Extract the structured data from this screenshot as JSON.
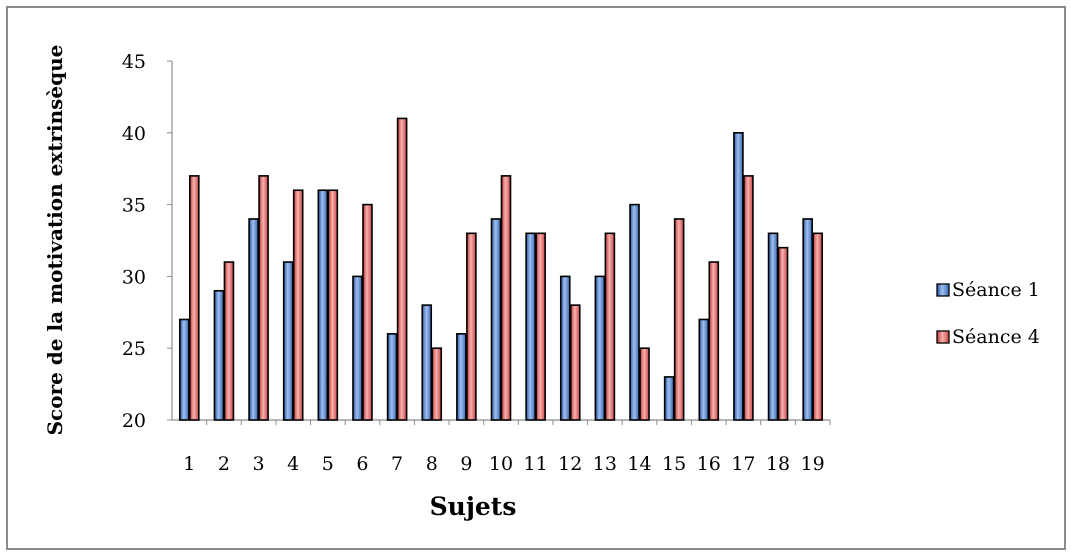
{
  "chart_data": {
    "type": "bar",
    "title": "",
    "xlabel": "Sujets",
    "ylabel": "Score de la motivation extrinsèque",
    "categories": [
      "1",
      "2",
      "3",
      "4",
      "5",
      "6",
      "7",
      "8",
      "9",
      "10",
      "11",
      "12",
      "13",
      "14",
      "15",
      "16",
      "17",
      "18",
      "19"
    ],
    "series": [
      {
        "name": "Séance 1",
        "color": "#4f81bd",
        "values": [
          27,
          29,
          34,
          31,
          36,
          30,
          26,
          28,
          26,
          34,
          33,
          30,
          30,
          35,
          23,
          27,
          40,
          33,
          34
        ]
      },
      {
        "name": "Séance 4",
        "color": "#e05c5c",
        "values": [
          37,
          31,
          37,
          36,
          36,
          35,
          41,
          25,
          33,
          37,
          33,
          28,
          33,
          25,
          34,
          31,
          37,
          32,
          33
        ]
      }
    ],
    "ylim": [
      20,
      45
    ],
    "yticks": [
      20,
      25,
      30,
      35,
      40,
      45
    ],
    "grid": false,
    "legend_position": "right"
  }
}
